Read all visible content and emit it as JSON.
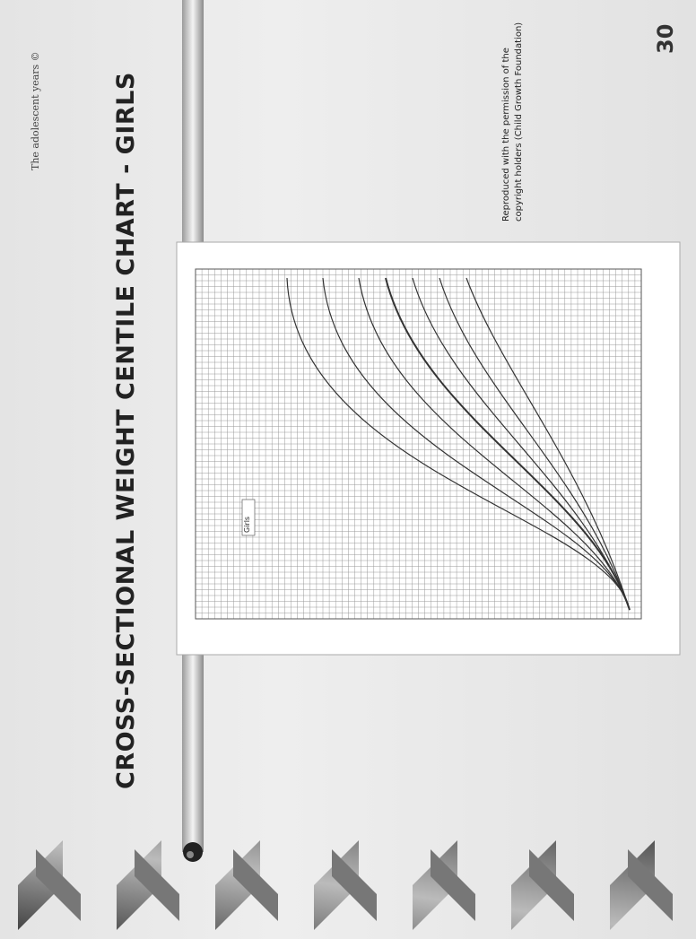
{
  "header": {
    "text": "The adolescent years ©"
  },
  "slide": {
    "title": "CROSS-SECTIONAL WEIGHT CENTILE CHART - GIRLS",
    "figure_label": "Girls",
    "credit": [
      "Reproduced with the permission of the",
      "copyright holders (Child Growth Foundation)"
    ],
    "page_number": "30"
  }
}
